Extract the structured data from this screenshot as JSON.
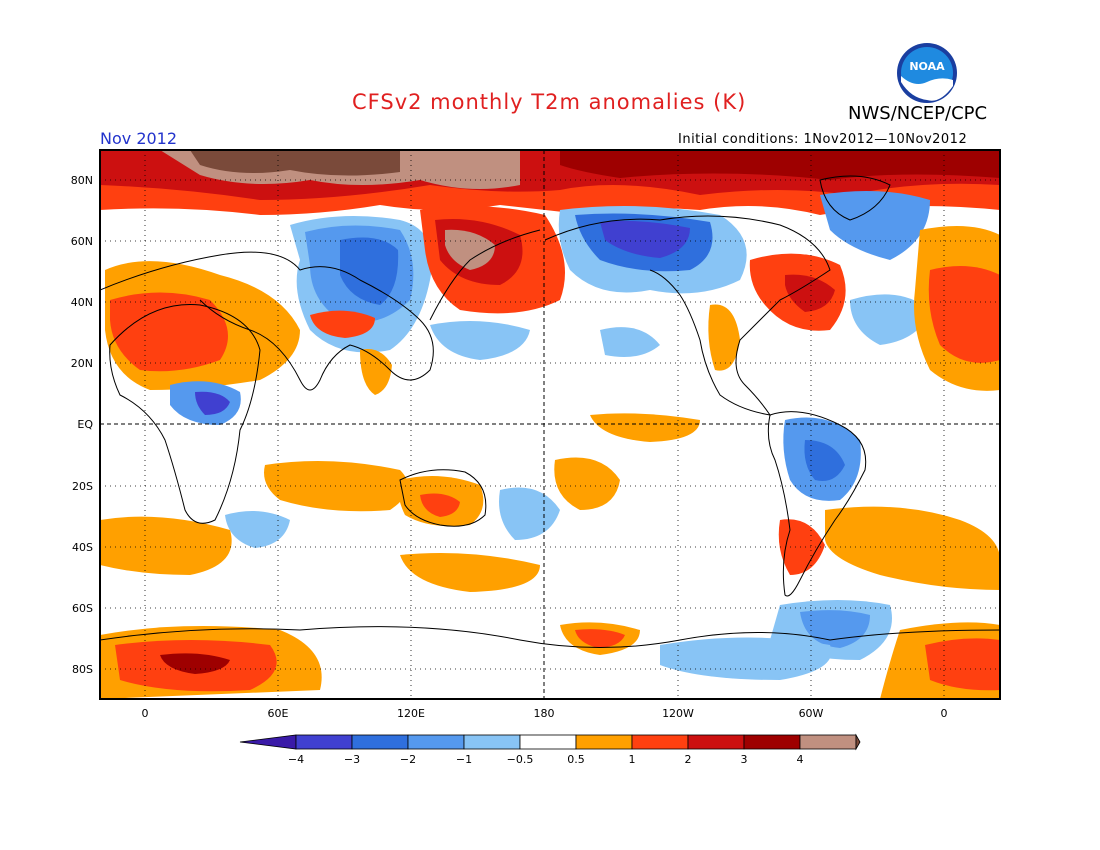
{
  "header": {
    "title": "CFSv2 monthly T2m anomalies (K)",
    "agency": "NWS/NCEP/CPC",
    "month": "Nov 2012",
    "initial_conditions": "Initial conditions: 1Nov2012—10Nov2012",
    "logo_text": "NOAA"
  },
  "axes": {
    "lat_labels": [
      "80N",
      "60N",
      "40N",
      "20N",
      "EQ",
      "20S",
      "40S",
      "60S",
      "80S"
    ],
    "lon_labels": [
      "0",
      "60E",
      "120E",
      "180",
      "120W",
      "60W",
      "0"
    ]
  },
  "colorbar": {
    "labels": [
      "−4",
      "−3",
      "−2",
      "−1",
      "−0.5",
      "0.5",
      "1",
      "2",
      "3",
      "4"
    ],
    "colors": [
      "#3a1aa8",
      "#4040d0",
      "#2f6fdd",
      "#5599ee",
      "#88c4f5",
      "#ffffff",
      "#ffa000",
      "#ff4010",
      "#cc1010",
      "#9e0000",
      "#c09080",
      "#7a4a3a"
    ]
  },
  "colors": {
    "title": "#e02020",
    "month": "#2233cc",
    "warm_light": "#ffa000",
    "warm_mid": "#ff4010",
    "warm_dark": "#cc1010",
    "warm_deep": "#9e0000",
    "warm_pale_brown": "#c09080",
    "warm_brown": "#7a4a3a",
    "cool_light": "#88c4f5",
    "cool_mid": "#5599ee",
    "cool_dark": "#2f6fdd",
    "cool_deep": "#4040d0"
  }
}
